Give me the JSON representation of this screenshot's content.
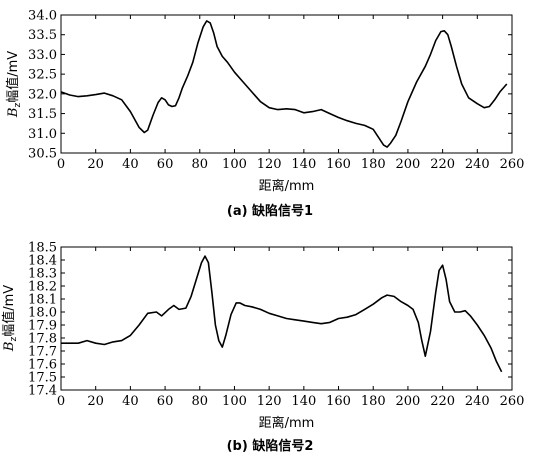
{
  "chart_data": [
    {
      "type": "line",
      "caption": "(a) 缺陷信号1",
      "xlabel": "距离/mm",
      "ylabel": "Bz幅值/mV",
      "ylabel_main": "B",
      "ylabel_sub": "z",
      "ylabel_rest": "幅值/mV",
      "xlim": [
        0,
        260
      ],
      "ylim": [
        30.5,
        34.0
      ],
      "xticks": [
        0,
        20,
        40,
        60,
        80,
        100,
        120,
        140,
        160,
        180,
        200,
        220,
        240,
        260
      ],
      "yticks": [
        30.5,
        31.0,
        31.5,
        32.0,
        32.5,
        33.0,
        33.5,
        34.0
      ],
      "ytick_labels": [
        "30.5",
        "31.0",
        "31.5",
        "32.0",
        "32.5",
        "33.0",
        "33.5",
        "34.0"
      ],
      "series": [
        {
          "x": [
            0,
            5,
            10,
            15,
            20,
            25,
            30,
            35,
            40,
            45,
            48,
            50,
            53,
            56,
            58,
            60,
            62,
            64,
            66,
            68,
            70,
            73,
            76,
            79,
            82,
            84,
            86,
            88,
            90,
            93,
            96,
            100,
            105,
            110,
            115,
            120,
            125,
            130,
            135,
            140,
            145,
            150,
            155,
            160,
            165,
            170,
            175,
            180,
            183,
            186,
            188,
            190,
            193,
            196,
            200,
            205,
            210,
            213,
            216,
            219,
            221,
            223,
            225,
            228,
            231,
            235,
            240,
            244,
            247,
            250,
            253,
            257
          ],
          "y": [
            32.05,
            31.97,
            31.93,
            31.95,
            31.98,
            32.02,
            31.95,
            31.85,
            31.55,
            31.15,
            31.02,
            31.08,
            31.45,
            31.78,
            31.9,
            31.85,
            31.72,
            31.68,
            31.7,
            31.9,
            32.15,
            32.45,
            32.8,
            33.3,
            33.7,
            33.85,
            33.8,
            33.55,
            33.2,
            32.95,
            32.8,
            32.55,
            32.3,
            32.05,
            31.8,
            31.65,
            31.6,
            31.62,
            31.6,
            31.52,
            31.55,
            31.6,
            31.5,
            31.4,
            31.32,
            31.25,
            31.2,
            31.1,
            30.9,
            30.7,
            30.65,
            30.75,
            30.95,
            31.3,
            31.8,
            32.3,
            32.7,
            33.0,
            33.35,
            33.58,
            33.6,
            33.5,
            33.2,
            32.7,
            32.25,
            31.9,
            31.75,
            31.65,
            31.68,
            31.85,
            32.05,
            32.25
          ]
        }
      ]
    },
    {
      "type": "line",
      "caption": "(b) 缺陷信号2",
      "xlabel": "距离/mm",
      "ylabel": "Bz幅值/mV",
      "ylabel_main": "B",
      "ylabel_sub": "z",
      "ylabel_rest": "幅值/mV",
      "xlim": [
        0,
        260
      ],
      "ylim": [
        17.4,
        18.5
      ],
      "xticks": [
        0,
        20,
        40,
        60,
        80,
        100,
        120,
        140,
        160,
        180,
        200,
        220,
        240,
        260
      ],
      "yticks": [
        17.4,
        17.5,
        17.6,
        17.7,
        17.8,
        17.9,
        18.0,
        18.1,
        18.2,
        18.3,
        18.4,
        18.5
      ],
      "ytick_labels": [
        "17.4",
        "17.5",
        "17.6",
        "17.7",
        "17.8",
        "17.9",
        "18.0",
        "18.1",
        "18.2",
        "18.3",
        "18.4",
        "18.5"
      ],
      "series": [
        {
          "x": [
            0,
            5,
            10,
            15,
            20,
            25,
            30,
            35,
            40,
            45,
            50,
            55,
            58,
            62,
            65,
            68,
            72,
            75,
            78,
            81,
            83,
            85,
            87,
            89,
            91,
            93,
            95,
            98,
            101,
            103,
            106,
            110,
            115,
            120,
            125,
            130,
            135,
            140,
            145,
            150,
            155,
            160,
            165,
            170,
            175,
            180,
            185,
            188,
            192,
            196,
            200,
            203,
            206,
            208,
            210,
            213,
            216,
            218,
            220,
            222,
            224,
            227,
            230,
            233,
            236,
            240,
            244,
            248,
            251,
            254
          ],
          "y": [
            17.76,
            17.76,
            17.76,
            17.78,
            17.76,
            17.75,
            17.77,
            17.78,
            17.82,
            17.9,
            17.99,
            18.0,
            17.97,
            18.02,
            18.05,
            18.02,
            18.03,
            18.12,
            18.25,
            18.38,
            18.43,
            18.38,
            18.15,
            17.9,
            17.78,
            17.73,
            17.82,
            17.98,
            18.07,
            18.07,
            18.05,
            18.04,
            18.02,
            17.99,
            17.97,
            17.95,
            17.94,
            17.93,
            17.92,
            17.91,
            17.92,
            17.95,
            17.96,
            17.98,
            18.02,
            18.06,
            18.11,
            18.13,
            18.12,
            18.08,
            18.05,
            18.02,
            17.92,
            17.78,
            17.66,
            17.85,
            18.15,
            18.32,
            18.36,
            18.25,
            18.08,
            18.0,
            18.0,
            18.01,
            17.97,
            17.9,
            17.82,
            17.72,
            17.62,
            17.54
          ]
        }
      ]
    }
  ]
}
